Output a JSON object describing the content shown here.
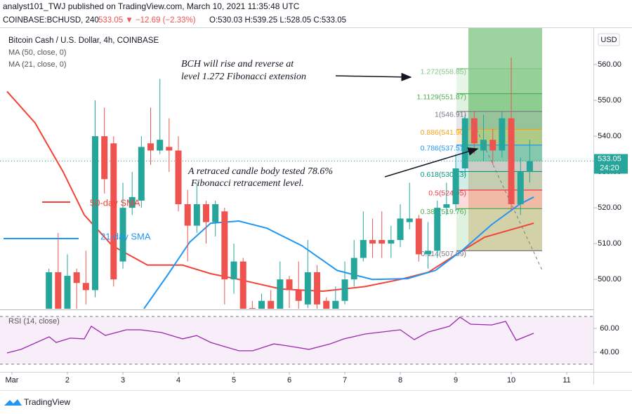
{
  "header": {
    "published": "analyst101_TWJ published on TradingView.com, March 10, 2021 11:35:48 UTC",
    "symbol": "COINBASE:BCHUSD, 240",
    "change": "533.05 ▼ −12.69 (−2.33%)",
    "ohlc": "O:530.03 H:539.25 L:528.05 C:533.05"
  },
  "chart_data": {
    "type": "candlestick",
    "title": "Bitcoin Cash / U.S. Dollar, 4h, COINBASE",
    "currency": "USD",
    "up_color": "#26a69a",
    "down_color": "#ef5350",
    "x": [
      1.667,
      1.833,
      2,
      2.167,
      2.333,
      2.5,
      2.667,
      2.833,
      3,
      3.167,
      3.333,
      3.5,
      3.667,
      3.833,
      4,
      4.167,
      4.333,
      4.5,
      4.667,
      4.833,
      5,
      5.167,
      5.333,
      5.5,
      5.667,
      5.833,
      6,
      6.167,
      6.333,
      6.5,
      6.667,
      6.833,
      7,
      7.167,
      7.333,
      7.5,
      7.667,
      7.833,
      8,
      8.167,
      8.333,
      8.5,
      8.667,
      8.833,
      9,
      9.167,
      9.333,
      9.5,
      9.667,
      9.833,
      10,
      10.167,
      10.333
    ],
    "open": [
      488,
      502,
      486,
      502,
      499,
      497,
      540,
      538,
      505,
      520,
      522,
      538,
      536,
      537,
      536,
      521,
      515,
      521,
      516,
      519,
      500,
      505,
      492,
      489,
      494,
      491,
      500,
      497,
      493,
      502,
      494,
      490,
      494,
      500,
      506,
      511,
      511,
      510,
      511,
      516,
      517,
      507,
      508,
      520,
      521,
      531,
      545,
      536,
      539,
      536,
      545,
      521,
      530
    ],
    "high": [
      503,
      513,
      507,
      503,
      508,
      550,
      548,
      540,
      527,
      530,
      540,
      548,
      556,
      545,
      540,
      525,
      527,
      522,
      522,
      520,
      510,
      506,
      494,
      496,
      497,
      505,
      501,
      505,
      511,
      504,
      495,
      498,
      505,
      511,
      519,
      517,
      519,
      515,
      521,
      527,
      518,
      516,
      522,
      527,
      535,
      546,
      547,
      546,
      542,
      547,
      562,
      534,
      539
    ],
    "low": [
      485,
      485,
      484,
      490,
      493,
      495,
      524,
      498,
      503,
      518,
      520,
      532,
      535,
      530,
      519,
      505,
      513,
      510,
      512,
      493,
      496,
      485,
      486,
      487,
      488,
      490,
      492,
      490,
      492,
      491,
      488,
      489,
      493,
      498,
      505,
      506,
      506,
      506,
      509,
      514,
      505,
      503,
      506,
      518,
      519,
      529,
      535,
      533,
      532,
      534,
      519,
      518,
      527
    ],
    "close": [
      502,
      488,
      501,
      499,
      497,
      540,
      528,
      500,
      520,
      523,
      537,
      536,
      539,
      536,
      521,
      515,
      521,
      516,
      521,
      500,
      505,
      490,
      489,
      494,
      490,
      500,
      497,
      494,
      502,
      493,
      490,
      494,
      500,
      506,
      511,
      510,
      510,
      511,
      517,
      517,
      507,
      508,
      520,
      521,
      531,
      545,
      538,
      539,
      536,
      545,
      521,
      530,
      533
    ],
    "series": [
      {
        "name": "MA (50, close, 0)",
        "color": "#f44336",
        "x": [
          0.911,
          1.418,
          1.924,
          2.304,
          2.81,
          3.443,
          4.076,
          4.582,
          5.089,
          5.848,
          6.608,
          7.367,
          8.0,
          8.506,
          9.013,
          9.519,
          10.405
        ],
        "values": [
          552.5,
          543.7,
          530,
          518,
          509.4,
          504,
          504,
          501.6,
          500,
          497.3,
          496.7,
          498,
          500,
          502,
          507,
          511.8,
          515.7
        ]
      },
      {
        "name": "MA (21, close, 0)",
        "color": "#2196f3",
        "x": [
          3.38,
          3.823,
          4.203,
          4.582,
          5.089,
          5.595,
          6.228,
          6.861,
          7.494,
          8.127,
          8.633,
          9.139,
          9.646,
          10.152,
          10.405
        ],
        "values": [
          491.8,
          501.6,
          510.4,
          515.7,
          516.3,
          514.3,
          509.4,
          502.5,
          500,
          500.2,
          502.5,
          508.4,
          515.3,
          521,
          523
        ]
      }
    ],
    "xlim": [
      0.785,
      11.48
    ],
    "xticks": [
      {
        "value": 1,
        "label": "Mar"
      },
      2,
      3,
      4,
      5,
      6,
      7,
      8,
      9,
      10,
      11
    ],
    "ylim": [
      491.8,
      570.2
    ],
    "yticks": [
      {
        "value": 500,
        "label": "500.00"
      },
      {
        "value": 510,
        "label": "510.00"
      },
      {
        "value": 520,
        "label": "520.00"
      },
      {
        "value": 530,
        "label": "530.00"
      },
      {
        "value": 540,
        "label": "540.00"
      },
      {
        "value": 550,
        "label": "550.00"
      },
      {
        "value": 560,
        "label": "560.00"
      }
    ],
    "last": {
      "value": 533.05,
      "label": "533.05"
    },
    "countdown": "24:20",
    "fib_levels": [
      {
        "label": "1.272(558.85)",
        "price": 558.85,
        "color": "#81c784"
      },
      {
        "label": "1.1129(551.87)",
        "price": 551.87,
        "color": "#4caf50"
      },
      {
        "label": "1(546.91)",
        "price": 546.91,
        "color": "#787b86"
      },
      {
        "label": "0.886(541.90)",
        "price": 541.9,
        "color": "#f7a21b"
      },
      {
        "label": "0.786(537.51)",
        "price": 537.51,
        "color": "#2196f3"
      },
      {
        "label": "0.618(530.13)",
        "price": 530.13,
        "color": "#089981"
      },
      {
        "label": "0.5(524.95)",
        "price": 524.95,
        "color": "#f23645"
      },
      {
        "label": "0.382(519.76)",
        "price": 519.76,
        "color": "#4caf50"
      },
      {
        "label": "0.114(507.99)",
        "price": 507.99,
        "color": "#787b86"
      }
    ],
    "annotations": {
      "fib_ext_1": "BCH will rise and reverse at",
      "fib_ext_2": "level 1.272 Fibonacci extension",
      "retrace_1": "A retraced candle body tested  78.6%",
      "retrace_2": "Fibonacci retracement level.",
      "sma50": "50-day SMA",
      "sma21": "21-day SMA"
    },
    "rsi": {
      "name": "RSI (14, close)",
      "color": "#9c27b0",
      "x": [
        0.911,
        1.165,
        1.671,
        1.797,
        2.051,
        2.304,
        2.43,
        2.684,
        3.063,
        3.316,
        3.696,
        4.076,
        4.329,
        4.582,
        4.835,
        5.089,
        5.342,
        5.722,
        5.975,
        6.354,
        6.734,
        6.987,
        7.367,
        8.0,
        8.253,
        8.506,
        8.886,
        9.076,
        9.266,
        9.646,
        9.899,
        10.089,
        10.405
      ],
      "values": [
        39.4,
        42.4,
        52.9,
        48.2,
        51.8,
        51.2,
        61.8,
        54.1,
        58.8,
        58.8,
        56.5,
        51.2,
        54,
        48.2,
        44.7,
        41.2,
        41.2,
        47,
        45.3,
        42.4,
        47,
        51.2,
        55.3,
        58.8,
        50.6,
        57,
        61.8,
        69.4,
        63.5,
        62.9,
        65.9,
        50,
        55.9
      ],
      "bands": [
        70,
        30
      ],
      "ylim": [
        23.5,
        74.7
      ],
      "yticks": [
        {
          "value": 40,
          "label": "40.00"
        },
        {
          "value": 60,
          "label": "60.00"
        }
      ]
    }
  },
  "footer": {
    "brand": "TradingView"
  }
}
